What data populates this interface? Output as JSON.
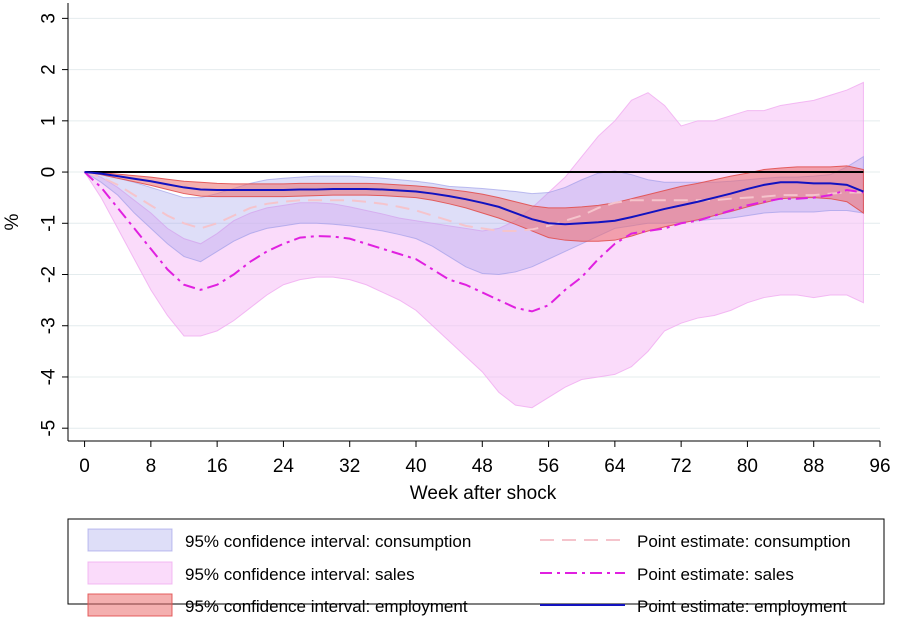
{
  "chart_data": {
    "type": "line",
    "x_label": "Week after shock",
    "y_label": "%",
    "xlim": [
      -2,
      96
    ],
    "ylim": [
      -5.25,
      3.3
    ],
    "xticks": [
      0,
      8,
      16,
      24,
      32,
      40,
      48,
      56,
      64,
      72,
      80,
      88,
      96
    ],
    "yticks": [
      -5,
      -4,
      -3,
      -2,
      -1,
      0,
      1,
      2,
      3
    ],
    "grid": true,
    "reference_line": 0,
    "x": [
      0,
      2,
      4,
      6,
      8,
      10,
      12,
      14,
      16,
      18,
      20,
      22,
      24,
      26,
      28,
      30,
      32,
      34,
      36,
      38,
      40,
      42,
      44,
      46,
      48,
      50,
      52,
      54,
      56,
      58,
      60,
      62,
      64,
      66,
      68,
      70,
      72,
      74,
      76,
      78,
      80,
      82,
      84,
      86,
      88,
      90,
      92,
      94
    ],
    "bands": [
      {
        "name": "95% confidence interval: consumption",
        "color": "rgba(160,160,235,0.35)",
        "stroke": "rgba(150,150,230,0.6)",
        "lower": [
          0,
          -0.2,
          -0.45,
          -0.8,
          -1.1,
          -1.4,
          -1.65,
          -1.75,
          -1.55,
          -1.35,
          -1.2,
          -1.1,
          -1.05,
          -1.0,
          -1.0,
          -1.02,
          -1.05,
          -1.1,
          -1.15,
          -1.22,
          -1.3,
          -1.45,
          -1.65,
          -1.85,
          -1.98,
          -2.0,
          -1.95,
          -1.85,
          -1.7,
          -1.55,
          -1.4,
          -1.25,
          -1.1,
          -1.05,
          -1.0,
          -1.0,
          -0.98,
          -0.95,
          -0.92,
          -0.9,
          -0.85,
          -0.8,
          -0.78,
          -0.78,
          -0.78,
          -0.75,
          -0.75,
          -0.8
        ],
        "upper": [
          0,
          -0.05,
          -0.12,
          -0.2,
          -0.3,
          -0.4,
          -0.5,
          -0.5,
          -0.42,
          -0.32,
          -0.22,
          -0.15,
          -0.12,
          -0.1,
          -0.08,
          -0.08,
          -0.08,
          -0.1,
          -0.12,
          -0.15,
          -0.18,
          -0.22,
          -0.28,
          -0.3,
          -0.32,
          -0.35,
          -0.38,
          -0.42,
          -0.4,
          -0.3,
          -0.15,
          -0.02,
          0.02,
          -0.05,
          -0.15,
          -0.2,
          -0.2,
          -0.2,
          -0.2,
          -0.18,
          -0.15,
          -0.12,
          -0.1,
          -0.1,
          -0.08,
          -0.05,
          0.1,
          0.3
        ]
      },
      {
        "name": "95% confidence interval: sales",
        "color": "rgba(245,190,245,0.55)",
        "stroke": "rgba(240,170,240,0.8)",
        "lower": [
          0,
          -0.5,
          -1.1,
          -1.7,
          -2.3,
          -2.8,
          -3.2,
          -3.2,
          -3.1,
          -2.9,
          -2.65,
          -2.4,
          -2.2,
          -2.1,
          -2.05,
          -2.05,
          -2.1,
          -2.2,
          -2.35,
          -2.5,
          -2.7,
          -3.0,
          -3.3,
          -3.6,
          -3.9,
          -4.3,
          -4.55,
          -4.6,
          -4.4,
          -4.2,
          -4.05,
          -4.0,
          -3.95,
          -3.8,
          -3.5,
          -3.1,
          -2.95,
          -2.85,
          -2.8,
          -2.7,
          -2.55,
          -2.45,
          -2.4,
          -2.4,
          -2.45,
          -2.4,
          -2.4,
          -2.55
        ],
        "upper": [
          0,
          -0.1,
          -0.3,
          -0.55,
          -0.8,
          -1.1,
          -1.3,
          -1.4,
          -1.2,
          -0.95,
          -0.8,
          -0.7,
          -0.65,
          -0.6,
          -0.6,
          -0.62,
          -0.68,
          -0.75,
          -0.82,
          -0.9,
          -0.95,
          -1.0,
          -1.05,
          -1.1,
          -1.15,
          -1.1,
          -0.95,
          -0.7,
          -0.4,
          -0.1,
          0.3,
          0.7,
          1.0,
          1.4,
          1.55,
          1.3,
          0.9,
          1.0,
          1.0,
          1.1,
          1.2,
          1.2,
          1.3,
          1.35,
          1.4,
          1.5,
          1.6,
          1.75
        ]
      },
      {
        "name": "95% confidence interval: employment",
        "color": "rgba(235,110,110,0.55)",
        "stroke": "rgba(225,80,80,0.9)",
        "lower": [
          0,
          -0.05,
          -0.12,
          -0.19,
          -0.26,
          -0.34,
          -0.42,
          -0.47,
          -0.48,
          -0.48,
          -0.48,
          -0.48,
          -0.48,
          -0.47,
          -0.46,
          -0.45,
          -0.45,
          -0.45,
          -0.46,
          -0.48,
          -0.5,
          -0.55,
          -0.62,
          -0.7,
          -0.8,
          -0.9,
          -1.02,
          -1.15,
          -1.28,
          -1.33,
          -1.35,
          -1.35,
          -1.33,
          -1.25,
          -1.15,
          -1.07,
          -1.0,
          -0.93,
          -0.85,
          -0.77,
          -0.68,
          -0.6,
          -0.52,
          -0.5,
          -0.5,
          -0.52,
          -0.58,
          -0.8
        ],
        "upper": [
          0,
          -0.01,
          -0.04,
          -0.07,
          -0.1,
          -0.14,
          -0.18,
          -0.2,
          -0.22,
          -0.23,
          -0.23,
          -0.23,
          -0.23,
          -0.22,
          -0.22,
          -0.22,
          -0.22,
          -0.22,
          -0.23,
          -0.25,
          -0.27,
          -0.3,
          -0.34,
          -0.38,
          -0.43,
          -0.5,
          -0.58,
          -0.66,
          -0.7,
          -0.7,
          -0.68,
          -0.65,
          -0.6,
          -0.52,
          -0.44,
          -0.36,
          -0.28,
          -0.22,
          -0.15,
          -0.08,
          -0.02,
          0.05,
          0.08,
          0.1,
          0.1,
          0.1,
          0.12,
          0.05
        ]
      }
    ],
    "series": [
      {
        "name": "Point estimate: consumption",
        "color": "#f5c4cc",
        "dash": "dash",
        "values": [
          0,
          -0.1,
          -0.25,
          -0.45,
          -0.65,
          -0.85,
          -1.0,
          -1.1,
          -1.0,
          -0.85,
          -0.7,
          -0.62,
          -0.58,
          -0.55,
          -0.55,
          -0.55,
          -0.55,
          -0.58,
          -0.62,
          -0.68,
          -0.75,
          -0.85,
          -0.95,
          -1.05,
          -1.1,
          -1.15,
          -1.15,
          -1.12,
          -1.05,
          -0.95,
          -0.85,
          -0.7,
          -0.6,
          -0.55,
          -0.55,
          -0.55,
          -0.55,
          -0.55,
          -0.55,
          -0.52,
          -0.5,
          -0.48,
          -0.45,
          -0.45,
          -0.45,
          -0.42,
          -0.4,
          -0.4
        ]
      },
      {
        "name": "Point estimate: sales",
        "color": "#e020e0",
        "dash": "dashdot",
        "values": [
          0,
          -0.3,
          -0.7,
          -1.1,
          -1.5,
          -1.9,
          -2.2,
          -2.3,
          -2.2,
          -2.0,
          -1.75,
          -1.55,
          -1.4,
          -1.28,
          -1.25,
          -1.26,
          -1.3,
          -1.4,
          -1.5,
          -1.6,
          -1.7,
          -1.9,
          -2.1,
          -2.2,
          -2.35,
          -2.5,
          -2.65,
          -2.72,
          -2.6,
          -2.3,
          -2.05,
          -1.7,
          -1.4,
          -1.2,
          -1.15,
          -1.1,
          -1.0,
          -0.95,
          -0.85,
          -0.75,
          -0.65,
          -0.58,
          -0.52,
          -0.52,
          -0.5,
          -0.45,
          -0.35,
          -0.4
        ]
      },
      {
        "name": "Point estimate: employment",
        "color": "#1212c0",
        "dash": "solid",
        "values": [
          0,
          -0.03,
          -0.08,
          -0.13,
          -0.18,
          -0.24,
          -0.3,
          -0.34,
          -0.35,
          -0.35,
          -0.35,
          -0.35,
          -0.35,
          -0.34,
          -0.34,
          -0.33,
          -0.33,
          -0.33,
          -0.34,
          -0.36,
          -0.38,
          -0.42,
          -0.47,
          -0.53,
          -0.6,
          -0.68,
          -0.8,
          -0.92,
          -1.0,
          -1.02,
          -1.0,
          -0.98,
          -0.95,
          -0.88,
          -0.8,
          -0.72,
          -0.65,
          -0.58,
          -0.5,
          -0.42,
          -0.33,
          -0.25,
          -0.2,
          -0.2,
          -0.22,
          -0.22,
          -0.25,
          -0.38
        ]
      }
    ]
  }
}
